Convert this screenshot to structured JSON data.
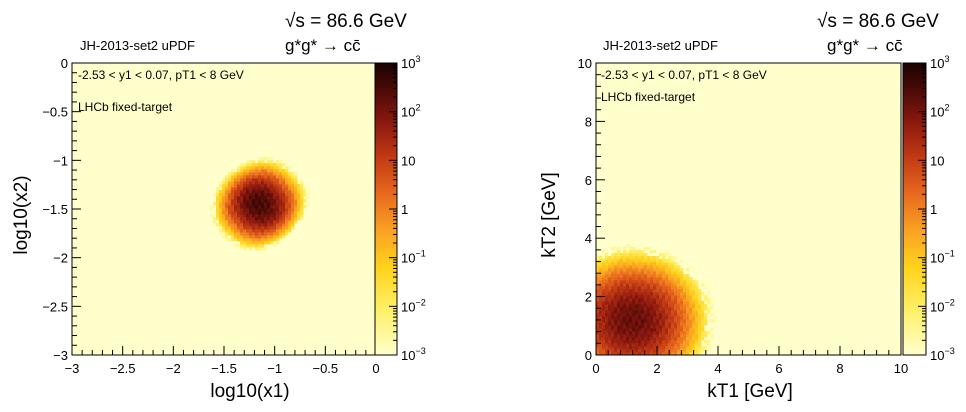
{
  "chart_data": [
    {
      "type": "heatmap",
      "energy_label": "√s = 86.6 GeV",
      "process_label": "g*g* → cc̄",
      "pdf_label": "JH-2013-set2 uPDF",
      "cut_label": "-2.53 < y1 < 0.07, pT1 < 8 GeV",
      "experiment_label": "LHCb fixed-target",
      "xlabel": "log10(x1)",
      "ylabel": "log10(x2)",
      "xlim": [
        -3,
        0
      ],
      "ylim": [
        -3,
        0
      ],
      "x_ticks": [
        -3,
        -2.5,
        -2,
        -1.5,
        -1,
        -0.5,
        0
      ],
      "x_tick_labels": [
        "−3",
        "−2.5",
        "−2",
        "−1.5",
        "−1",
        "−0.5",
        "0"
      ],
      "y_ticks": [
        -3,
        -2.5,
        -2,
        -1.5,
        -1,
        -0.5,
        0
      ],
      "y_tick_labels": [
        "−3",
        "−2.5",
        "−2",
        "−1.5",
        "−1",
        "−0.5",
        "0"
      ],
      "z_scale": "log",
      "zlim": [
        0.001,
        1000
      ],
      "z_tick_labels": [
        "10^3",
        "10^2",
        "10",
        "1",
        "10^-1",
        "10^-2",
        "10^-3"
      ],
      "peak": [
        -1.15,
        -1.45
      ],
      "peak_value": 300
    },
    {
      "type": "heatmap",
      "energy_label": "√s = 86.6 GeV",
      "process_label": "g*g* → cc̄",
      "pdf_label": "JH-2013-set2 uPDF",
      "cut_label": "-2.53 < y1 < 0.07, pT1 < 8 GeV",
      "experiment_label": "LHCb fixed-target",
      "xlabel": "kT1   [GeV]",
      "ylabel": "kT2   [GeV]",
      "xlim": [
        0,
        10
      ],
      "ylim": [
        0,
        10
      ],
      "x_ticks": [
        0,
        2,
        4,
        6,
        8,
        10
      ],
      "x_tick_labels": [
        "0",
        "2",
        "4",
        "6",
        "8",
        "10"
      ],
      "y_ticks": [
        0,
        2,
        4,
        6,
        8,
        10
      ],
      "y_tick_labels": [
        "0",
        "2",
        "4",
        "6",
        "8",
        "10"
      ],
      "z_scale": "log",
      "zlim": [
        0.001,
        1000
      ],
      "z_tick_labels": [
        "10^3",
        "10^2",
        "10",
        "1",
        "10^-1",
        "10^-2",
        "10^-3"
      ],
      "peak": [
        1.2,
        1.2
      ],
      "peak_value": 150
    }
  ]
}
